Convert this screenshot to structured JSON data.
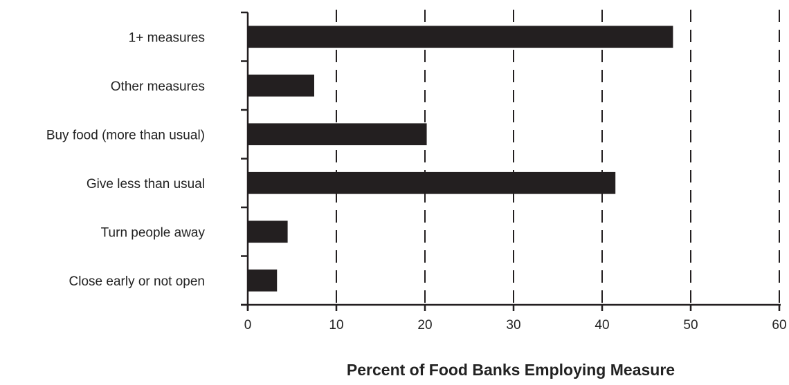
{
  "chart_data": {
    "type": "bar",
    "orientation": "horizontal",
    "title": "",
    "xlabel": "Percent of Food Banks Employing Measure",
    "ylabel": "",
    "categories": [
      "1+ measures",
      "Other measures",
      "Buy food (more than usual)",
      "Give less than usual",
      "Turn people away",
      "Close early or not open"
    ],
    "values": [
      48,
      7.5,
      20.2,
      41.5,
      4.5,
      3.3
    ],
    "xlim": [
      0,
      60
    ],
    "xticks": [
      0,
      10,
      20,
      30,
      40,
      50,
      60
    ],
    "grid": "vertical dashed",
    "legend": "none",
    "bar_color": "#231f20",
    "axis_color": "#231f20"
  }
}
